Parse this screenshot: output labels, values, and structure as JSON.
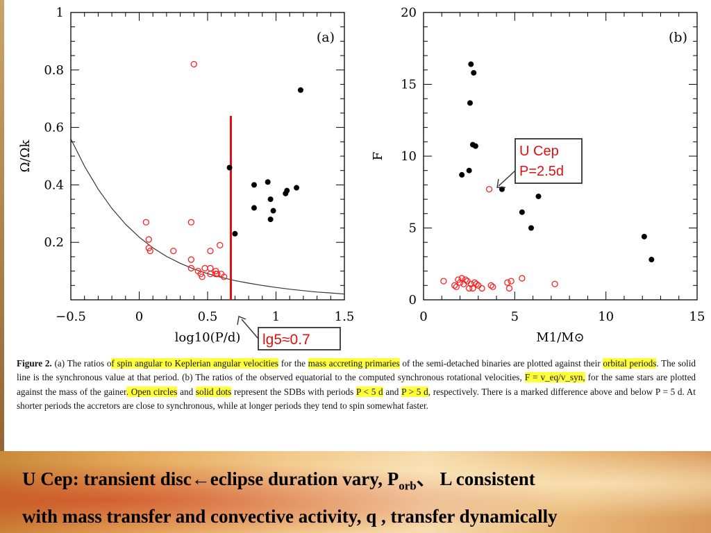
{
  "caption": {
    "label": "Figure 2.",
    "part1": " (a) The ratios o",
    "hl1": "f spin angular to Keplerian angular velocities",
    "part2": " for the ",
    "hl2": "mass accreting primaries",
    "part3": " of the semi-detached binaries are plotted against their ",
    "hl3": "orbital periods",
    "part4": ". The solid line is the synchronous value at that period. (b) The ratios of the observed equatorial to the computed synchronous rotational velocities, ",
    "hl4": "F = v_eq/v_syn,",
    "part5": " for the same stars are plotted against the mass of the gainer",
    "hl5": ". Open circles",
    "part6": " and ",
    "hl6": "solid dots",
    "part7": " represent the SDBs with periods ",
    "hl7": "P < 5 d",
    "part8": " and ",
    "hl8": "P > 5 d",
    "part9": ", respectively. There is a marked difference above and below P = 5 d. At shorter periods the accretors are close to synchronous, while at longer periods they tend to spin somewhat faster."
  },
  "bottom_text": {
    "line1": "U Cep: transient disc←eclipse duration vary, P",
    "sub": "orb",
    "line1b": "、 L consistent",
    "line2": "with mass transfer and convective activity, q , transfer dynamically"
  },
  "colors": {
    "open": "#ff2020",
    "solid": "#000000",
    "annot": "#e01010",
    "curve": "#333333"
  },
  "chart_data": [
    {
      "type": "scatter",
      "panel_label": "(a)",
      "xlabel": "log10(P/d)",
      "ylabel": "Ω/Ωk",
      "xlim": [
        -0.5,
        1.5
      ],
      "ylim": [
        0,
        1
      ],
      "xticks": [
        -0.5,
        0,
        0.5,
        1,
        1.5
      ],
      "xtick_labels": [
        "−0.5",
        "0",
        "0.5",
        "1",
        "1.5"
      ],
      "yticks": [
        0.2,
        0.4,
        0.6,
        0.8,
        1
      ],
      "ytick_labels": [
        "0.2",
        "0.4",
        "0.6",
        "0.8",
        "1"
      ],
      "series": [
        {
          "name": "Open circles",
          "marker": "open",
          "x": [
            0.05,
            0.07,
            0.07,
            0.08,
            0.25,
            0.38,
            0.38,
            0.4,
            0.38,
            0.43,
            0.45,
            0.46,
            0.48,
            0.52,
            0.52,
            0.52,
            0.56,
            0.56,
            0.57,
            0.59,
            0.6,
            0.62
          ],
          "y": [
            0.27,
            0.21,
            0.18,
            0.17,
            0.17,
            0.14,
            0.27,
            0.82,
            0.11,
            0.1,
            0.09,
            0.08,
            0.11,
            0.17,
            0.11,
            0.09,
            0.1,
            0.09,
            0.09,
            0.19,
            0.09,
            0.08
          ]
        },
        {
          "name": "Solid dots",
          "marker": "solid",
          "x": [
            0.66,
            0.7,
            0.84,
            0.84,
            0.94,
            0.96,
            0.96,
            0.98,
            1.07,
            1.08,
            1.15,
            1.18
          ],
          "y": [
            0.46,
            0.23,
            0.4,
            0.32,
            0.41,
            0.28,
            0.35,
            0.31,
            0.37,
            0.38,
            0.39,
            0.73
          ]
        }
      ],
      "curve": {
        "name": "synchronous",
        "x": [
          -0.5,
          -0.4,
          -0.3,
          -0.2,
          -0.1,
          0,
          0.1,
          0.2,
          0.3,
          0.4,
          0.5,
          0.6,
          0.7,
          0.8,
          0.9,
          1.0,
          1.1,
          1.2,
          1.3,
          1.4,
          1.5
        ],
        "y": [
          0.56,
          0.465,
          0.385,
          0.318,
          0.263,
          0.218,
          0.181,
          0.151,
          0.127,
          0.107,
          0.091,
          0.078,
          0.067,
          0.058,
          0.05,
          0.043,
          0.037,
          0.032,
          0.027,
          0.024,
          0.02
        ]
      },
      "vline": {
        "x": 0.67,
        "y_range": [
          0,
          0.64
        ]
      },
      "annotation": {
        "text": "lg5≈0.7"
      }
    },
    {
      "type": "scatter",
      "panel_label": "(b)",
      "xlabel": "M1/M⊙",
      "ylabel": "F",
      "xlim": [
        0,
        15
      ],
      "ylim": [
        0,
        20
      ],
      "xticks": [
        0,
        5,
        10,
        15
      ],
      "xtick_labels": [
        "0",
        "5",
        "10",
        "15"
      ],
      "yticks": [
        0,
        5,
        10,
        15,
        20
      ],
      "ytick_labels": [
        "0",
        "5",
        "10",
        "15",
        "20"
      ],
      "series": [
        {
          "name": "Solid dots",
          "marker": "solid",
          "x": [
            2.1,
            2.5,
            2.55,
            2.6,
            2.7,
            2.75,
            2.85,
            4.3,
            5.4,
            5.9,
            6.3,
            12.1,
            12.5
          ],
          "y": [
            8.7,
            9.0,
            13.7,
            16.4,
            10.8,
            15.8,
            10.7,
            7.7,
            6.1,
            5.0,
            7.2,
            4.4,
            2.8
          ],
          "sizes": [
            1,
            1,
            1,
            1,
            1,
            1,
            1,
            1,
            1,
            1,
            1,
            1,
            1
          ]
        },
        {
          "name": "Open circles",
          "marker": "open",
          "x": [
            1.1,
            1.7,
            1.8,
            1.9,
            2.0,
            2.1,
            2.2,
            2.3,
            2.4,
            2.5,
            2.6,
            2.7,
            2.8,
            2.9,
            3.0,
            3.2,
            3.6,
            3.7,
            3.8,
            4.6,
            4.7,
            4.8,
            5.4,
            7.2
          ],
          "y": [
            1.3,
            1.0,
            0.9,
            1.4,
            1.2,
            1.5,
            1.1,
            1.4,
            1.3,
            0.8,
            1.1,
            0.8,
            1.2,
            1.1,
            1.0,
            0.8,
            7.7,
            1.0,
            0.9,
            1.2,
            0.8,
            1.3,
            1.5,
            1.1
          ]
        }
      ],
      "annotation": {
        "line1": "U Cep",
        "line2": "P=2.5d"
      }
    }
  ]
}
